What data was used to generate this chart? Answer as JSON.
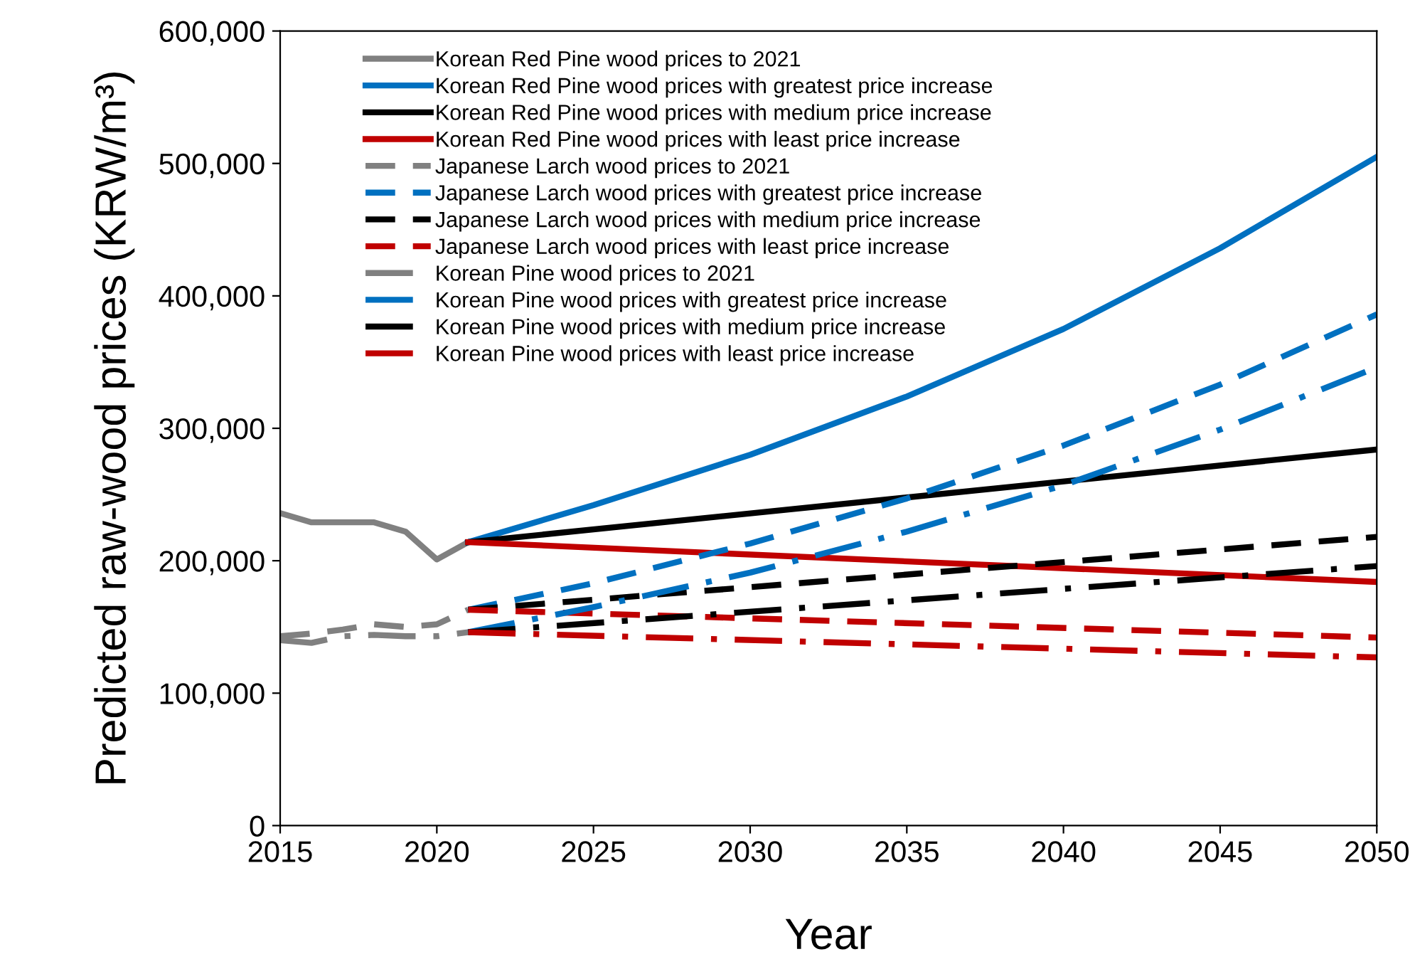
{
  "chart_data": {
    "type": "line",
    "xlabel": "Year",
    "ylabel": "Predicted raw-wood prices (KRW/m³)",
    "xlim": [
      2015,
      2050
    ],
    "xticks": [
      2015,
      2020,
      2025,
      2030,
      2035,
      2040,
      2045,
      2050
    ],
    "ylim": [
      0,
      600000
    ],
    "yticks": [
      0,
      {
        "value": 100000,
        "label": "100,000"
      },
      {
        "value": 200000,
        "label": "200,000"
      },
      {
        "value": 300000,
        "label": "300,000"
      },
      {
        "value": 400000,
        "label": "400,000"
      },
      {
        "value": 500000,
        "label": "500,000"
      },
      {
        "value": 600000,
        "label": "600,000"
      }
    ],
    "grid": false,
    "legend": "top left",
    "marker": "none",
    "series": [
      {
        "name": "Korean Red Pine wood prices to 2021",
        "color": "#808080",
        "line_style": "solid",
        "x": [
          2015,
          2016,
          2017,
          2018,
          2019,
          2020,
          2021
        ],
        "values": [
          236000,
          229000,
          229000,
          229000,
          222000,
          201000,
          214000
        ]
      },
      {
        "name": "Korean Red Pine wood prices with greatest price increase",
        "color": "#0070c0",
        "line_style": "solid",
        "x": [
          2021,
          2025,
          2030,
          2035,
          2040,
          2045,
          2050
        ],
        "values": [
          214000,
          242000,
          280000,
          324000,
          375000,
          436000,
          505000
        ]
      },
      {
        "name": "Korean Red Pine wood prices with medium price increase",
        "color": "#000000",
        "line_style": "solid",
        "x": [
          2021,
          2050
        ],
        "values": [
          214000,
          284000
        ]
      },
      {
        "name": "Korean Red Pine wood prices with least price increase",
        "color": "#c00000",
        "line_style": "solid",
        "x": [
          2021,
          2050
        ],
        "values": [
          214000,
          184000
        ]
      },
      {
        "name": "Japanese Larch wood prices to 2021",
        "color": "#808080",
        "line_style": "dashed",
        "x": [
          2015,
          2016,
          2017,
          2018,
          2019,
          2020,
          2021
        ],
        "values": [
          143000,
          145000,
          148000,
          152000,
          150000,
          152000,
          163000
        ]
      },
      {
        "name": "Japanese Larch wood prices with greatest price increase",
        "color": "#0070c0",
        "line_style": "dashed",
        "x": [
          2021,
          2025,
          2030,
          2035,
          2040,
          2045,
          2050
        ],
        "values": [
          163000,
          183000,
          213000,
          247000,
          287000,
          333000,
          386000
        ]
      },
      {
        "name": "Japanese Larch wood prices with medium price increase",
        "color": "#000000",
        "line_style": "dashed",
        "x": [
          2021,
          2050
        ],
        "values": [
          163000,
          218000
        ]
      },
      {
        "name": "Japanese Larch wood prices with least price increase",
        "color": "#c00000",
        "line_style": "dashed",
        "x": [
          2021,
          2050
        ],
        "values": [
          163000,
          142000
        ]
      },
      {
        "name": "Korean Pine wood prices to 2021",
        "color": "#808080",
        "line_style": "dashdot",
        "x": [
          2015,
          2016,
          2017,
          2018,
          2019,
          2020,
          2021
        ],
        "values": [
          140000,
          138000,
          143000,
          144000,
          143000,
          143000,
          146000
        ]
      },
      {
        "name": "Korean Pine wood prices with greatest price increase",
        "color": "#0070c0",
        "line_style": "dashdot",
        "x": [
          2021,
          2025,
          2030,
          2035,
          2040,
          2045,
          2050
        ],
        "values": [
          146000,
          165000,
          191000,
          222000,
          257000,
          299000,
          346000
        ]
      },
      {
        "name": "Korean Pine wood prices with medium price increase",
        "color": "#000000",
        "line_style": "dashdot",
        "x": [
          2021,
          2050
        ],
        "values": [
          146000,
          196000
        ]
      },
      {
        "name": "Korean Pine wood prices with least price increase",
        "color": "#c00000",
        "line_style": "dashdot",
        "x": [
          2021,
          2050
        ],
        "values": [
          146000,
          127000
        ]
      }
    ]
  }
}
